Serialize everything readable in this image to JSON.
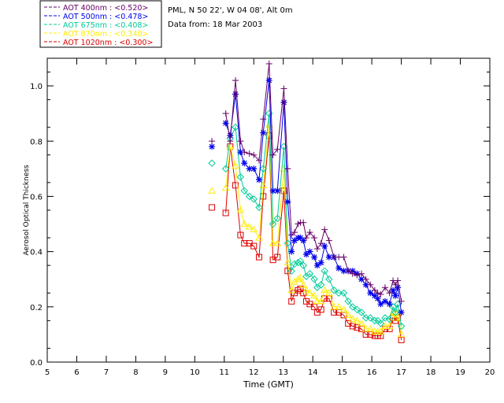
{
  "chart_data": {
    "type": "line",
    "xlabel": "Time (GMT)",
    "ylabel": "Aerosol Optical Thickness",
    "xlim": [
      5,
      20
    ],
    "ylim": [
      0.0,
      1.1
    ],
    "xticks": [
      5,
      6,
      7,
      8,
      9,
      10,
      11,
      12,
      13,
      14,
      15,
      16,
      17,
      18,
      19,
      20
    ],
    "yticks": [
      0.0,
      0.2,
      0.4,
      0.6,
      0.8,
      1.0
    ],
    "xtick_labels": [
      "5",
      "6",
      "7",
      "8",
      "9",
      "10",
      "11",
      "12",
      "13",
      "14",
      "15",
      "16",
      "17",
      "18",
      "19",
      "20"
    ],
    "ytick_labels": [
      "0.0",
      "0.2",
      "0.4",
      "0.6",
      "0.8",
      "1.0"
    ],
    "grid": false,
    "info": {
      "location": "PML, N 50 22', W 04 08', Alt 0m",
      "date": "Data from: 18 Mar 2003"
    },
    "legend_position": "top-left",
    "series": [
      {
        "legend": "AOT  400nm : <0.520>",
        "color": "#660066",
        "marker": "plus",
        "x": [
          10.58,
          11.05,
          11.2,
          11.38,
          11.55,
          11.68,
          11.85,
          12.0,
          12.18,
          12.32,
          12.52,
          12.65,
          12.8,
          13.02,
          13.15,
          13.28,
          13.38,
          13.5,
          13.58,
          13.68,
          13.78,
          13.9,
          14.05,
          14.15,
          14.28,
          14.4,
          14.55,
          14.72,
          14.88,
          15.05,
          15.2,
          15.35,
          15.5,
          15.65,
          15.8,
          15.95,
          16.1,
          16.2,
          16.3,
          16.45,
          16.6,
          16.72,
          16.8,
          16.88,
          17.0
        ],
        "y": [
          0.8,
          0.9,
          0.8,
          1.02,
          0.8,
          0.76,
          0.755,
          0.75,
          0.73,
          0.88,
          1.08,
          0.75,
          0.77,
          0.99,
          0.7,
          0.46,
          0.47,
          0.5,
          0.505,
          0.505,
          0.45,
          0.47,
          0.45,
          0.41,
          0.43,
          0.48,
          0.44,
          0.38,
          0.38,
          0.38,
          0.33,
          0.32,
          0.315,
          0.32,
          0.3,
          0.28,
          0.26,
          0.25,
          0.245,
          0.27,
          0.25,
          0.295,
          0.28,
          0.295,
          0.22
        ]
      },
      {
        "legend": "AOT  500nm : <0.478>",
        "color": "#0000ee",
        "marker": "asterisk",
        "x": [
          10.58,
          11.05,
          11.2,
          11.38,
          11.55,
          11.68,
          11.85,
          12.0,
          12.18,
          12.32,
          12.52,
          12.65,
          12.8,
          13.02,
          13.15,
          13.28,
          13.38,
          13.5,
          13.58,
          13.68,
          13.78,
          13.9,
          14.05,
          14.15,
          14.28,
          14.4,
          14.55,
          14.72,
          14.88,
          15.05,
          15.2,
          15.35,
          15.5,
          15.65,
          15.8,
          15.95,
          16.1,
          16.2,
          16.3,
          16.45,
          16.6,
          16.72,
          16.8,
          16.88,
          17.0
        ],
        "y": [
          0.78,
          0.865,
          0.82,
          0.97,
          0.76,
          0.72,
          0.7,
          0.7,
          0.66,
          0.83,
          1.02,
          0.62,
          0.62,
          0.94,
          0.58,
          0.4,
          0.44,
          0.45,
          0.45,
          0.44,
          0.39,
          0.4,
          0.38,
          0.35,
          0.36,
          0.42,
          0.38,
          0.38,
          0.34,
          0.33,
          0.33,
          0.33,
          0.32,
          0.3,
          0.28,
          0.25,
          0.24,
          0.23,
          0.21,
          0.22,
          0.21,
          0.26,
          0.24,
          0.27,
          0.18
        ]
      },
      {
        "legend": "AOT  675nm : <0.408>",
        "color": "#00cc99",
        "marker": "diamond",
        "x": [
          10.58,
          11.05,
          11.2,
          11.38,
          11.55,
          11.68,
          11.85,
          12.0,
          12.18,
          12.32,
          12.52,
          12.65,
          12.8,
          13.02,
          13.15,
          13.28,
          13.38,
          13.5,
          13.58,
          13.68,
          13.78,
          13.9,
          14.05,
          14.15,
          14.28,
          14.4,
          14.55,
          14.72,
          14.88,
          15.05,
          15.2,
          15.35,
          15.5,
          15.65,
          15.8,
          15.95,
          16.1,
          16.2,
          16.3,
          16.45,
          16.6,
          16.72,
          16.8,
          16.88,
          17.0
        ],
        "y": [
          0.72,
          0.7,
          0.81,
          0.85,
          0.67,
          0.62,
          0.6,
          0.59,
          0.56,
          0.7,
          0.9,
          0.5,
          0.52,
          0.78,
          0.43,
          0.33,
          0.355,
          0.36,
          0.365,
          0.35,
          0.31,
          0.32,
          0.3,
          0.27,
          0.28,
          0.33,
          0.3,
          0.26,
          0.25,
          0.25,
          0.22,
          0.2,
          0.19,
          0.18,
          0.16,
          0.16,
          0.15,
          0.15,
          0.14,
          0.16,
          0.155,
          0.2,
          0.18,
          0.21,
          0.13
        ]
      },
      {
        "legend": "AOT  870nm : <0.340>",
        "color": "#ffee00",
        "marker": "triangle",
        "x": [
          10.58,
          11.05,
          11.2,
          11.38,
          11.55,
          11.68,
          11.85,
          12.0,
          12.18,
          12.32,
          12.52,
          12.65,
          12.8,
          13.02,
          13.15,
          13.28,
          13.38,
          13.5,
          13.58,
          13.68,
          13.78,
          13.9,
          14.05,
          14.15,
          14.28,
          14.4,
          14.55,
          14.72,
          14.88,
          15.05,
          15.2,
          15.35,
          15.5,
          15.65,
          15.8,
          15.95,
          16.1,
          16.2,
          16.3,
          16.45,
          16.6,
          16.72,
          16.8,
          16.88,
          17.0
        ],
        "y": [
          0.62,
          0.63,
          0.78,
          0.71,
          0.55,
          0.5,
          0.49,
          0.48,
          0.45,
          0.64,
          0.86,
          0.43,
          0.43,
          0.7,
          0.36,
          0.26,
          0.29,
          0.3,
          0.305,
          0.28,
          0.26,
          0.25,
          0.24,
          0.22,
          0.22,
          0.26,
          0.25,
          0.2,
          0.2,
          0.19,
          0.17,
          0.155,
          0.15,
          0.14,
          0.12,
          0.12,
          0.11,
          0.11,
          0.11,
          0.13,
          0.13,
          0.18,
          0.16,
          0.18,
          0.1
        ]
      },
      {
        "legend": "AOT 1020nm : <0.300>",
        "color": "#dd0000",
        "marker": "square",
        "x": [
          10.58,
          11.05,
          11.2,
          11.38,
          11.55,
          11.68,
          11.85,
          12.0,
          12.18,
          12.32,
          12.52,
          12.65,
          12.8,
          13.02,
          13.15,
          13.28,
          13.38,
          13.5,
          13.58,
          13.68,
          13.78,
          13.9,
          14.05,
          14.15,
          14.28,
          14.4,
          14.55,
          14.72,
          14.88,
          15.05,
          15.2,
          15.35,
          15.5,
          15.65,
          15.8,
          15.95,
          16.1,
          16.2,
          16.3,
          16.45,
          16.6,
          16.72,
          16.8,
          16.88,
          17.0
        ],
        "y": [
          0.56,
          0.54,
          0.78,
          0.64,
          0.46,
          0.43,
          0.43,
          0.42,
          0.38,
          0.6,
          0.82,
          0.37,
          0.38,
          0.62,
          0.33,
          0.22,
          0.25,
          0.26,
          0.265,
          0.25,
          0.22,
          0.21,
          0.2,
          0.18,
          0.19,
          0.23,
          0.23,
          0.18,
          0.18,
          0.17,
          0.14,
          0.13,
          0.125,
          0.12,
          0.1,
          0.1,
          0.095,
          0.095,
          0.095,
          0.12,
          0.12,
          0.16,
          0.15,
          0.16,
          0.08
        ]
      }
    ]
  }
}
